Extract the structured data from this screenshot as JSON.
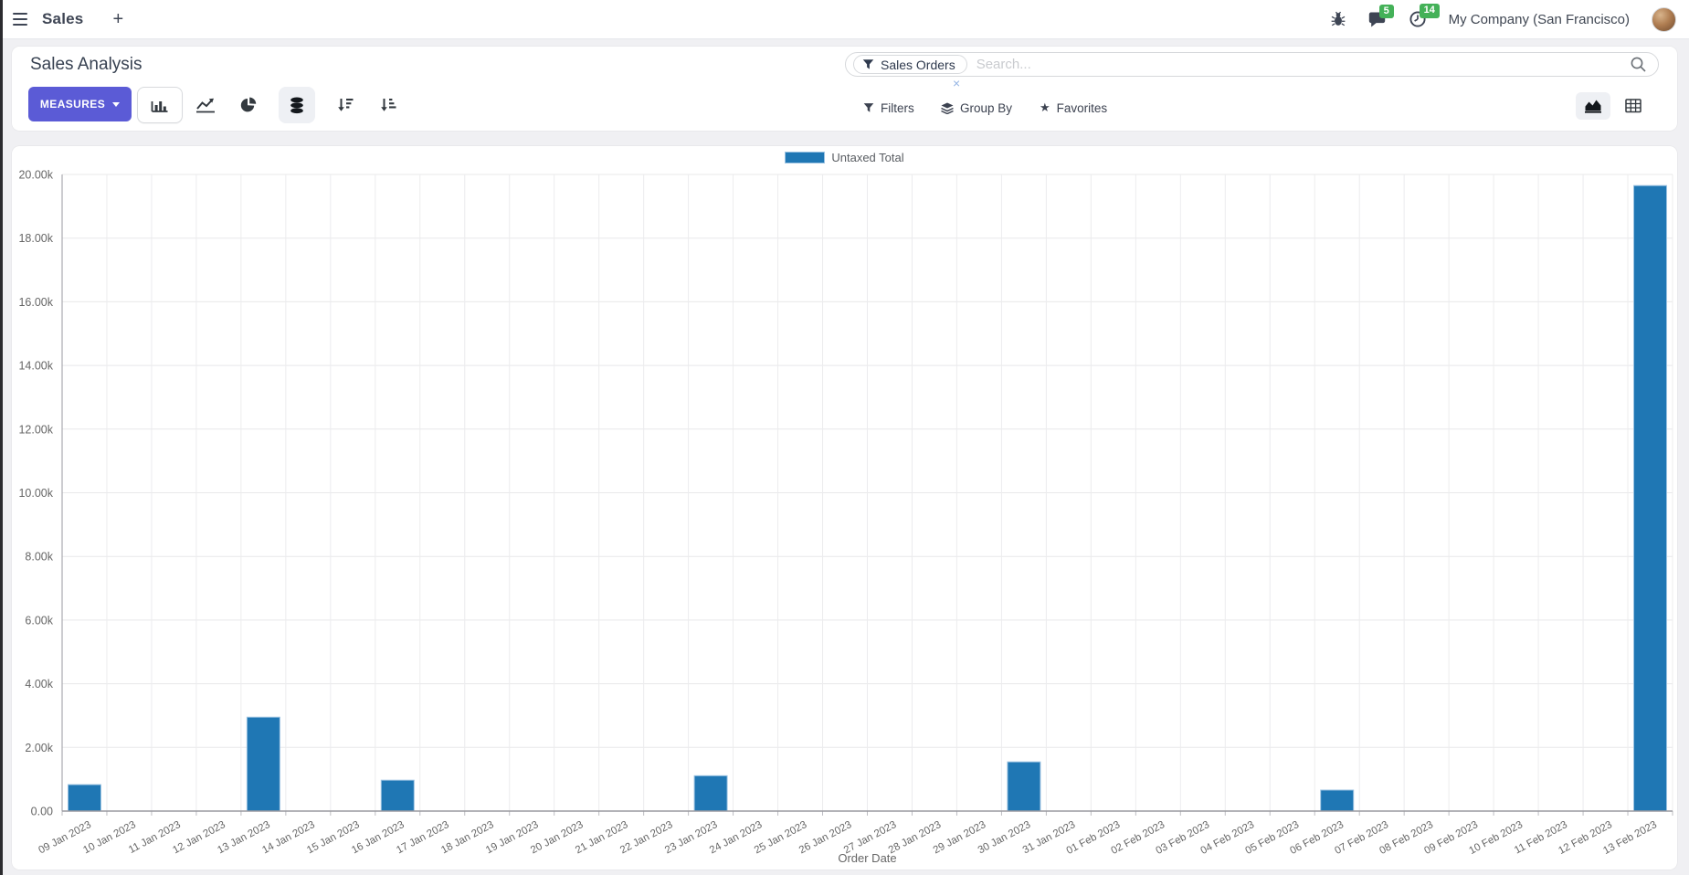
{
  "navbar": {
    "app_name": "Sales",
    "messages_badge": "5",
    "activities_badge": "14",
    "company": "My Company (San Francisco)"
  },
  "control_panel": {
    "title": "Sales Analysis",
    "measures_label": "MEASURES",
    "search": {
      "facet": "Sales Orders",
      "placeholder": "Search..."
    },
    "filters_label": "Filters",
    "group_by_label": "Group By",
    "favorites_label": "Favorites"
  },
  "icons": {
    "plus": "+",
    "star": "★",
    "close": "×"
  },
  "colors": {
    "primary": "#5b5bd6",
    "bar_blue": "#1f77b4",
    "badge_green": "#44b158"
  },
  "chart_data": {
    "type": "bar",
    "title": "",
    "legend": [
      {
        "name": "Untaxed Total",
        "color": "#1f77b4"
      }
    ],
    "legend_position": "top",
    "grid": true,
    "xlabel": "Order Date",
    "ylabel": "",
    "ylim": [
      0,
      20000
    ],
    "ytick_values": [
      0,
      2000,
      4000,
      6000,
      8000,
      10000,
      12000,
      14000,
      16000,
      18000,
      20000
    ],
    "ytick_labels": [
      "0.00",
      "2.00k",
      "4.00k",
      "6.00k",
      "8.00k",
      "10.00k",
      "12.00k",
      "14.00k",
      "16.00k",
      "18.00k",
      "20.00k"
    ],
    "categories": [
      "09 Jan 2023",
      "10 Jan 2023",
      "11 Jan 2023",
      "12 Jan 2023",
      "13 Jan 2023",
      "14 Jan 2023",
      "15 Jan 2023",
      "16 Jan 2023",
      "17 Jan 2023",
      "18 Jan 2023",
      "19 Jan 2023",
      "20 Jan 2023",
      "21 Jan 2023",
      "22 Jan 2023",
      "23 Jan 2023",
      "24 Jan 2023",
      "25 Jan 2023",
      "26 Jan 2023",
      "27 Jan 2023",
      "28 Jan 2023",
      "29 Jan 2023",
      "30 Jan 2023",
      "31 Jan 2023",
      "01 Feb 2023",
      "02 Feb 2023",
      "03 Feb 2023",
      "04 Feb 2023",
      "05 Feb 2023",
      "06 Feb 2023",
      "07 Feb 2023",
      "08 Feb 2023",
      "09 Feb 2023",
      "10 Feb 2023",
      "11 Feb 2023",
      "12 Feb 2023",
      "13 Feb 2023"
    ],
    "values": [
      830,
      0,
      0,
      0,
      2950,
      0,
      0,
      970,
      0,
      0,
      0,
      0,
      0,
      0,
      1110,
      0,
      0,
      0,
      0,
      0,
      0,
      1545,
      0,
      0,
      0,
      0,
      0,
      0,
      660,
      0,
      0,
      0,
      0,
      0,
      0,
      19650
    ]
  }
}
